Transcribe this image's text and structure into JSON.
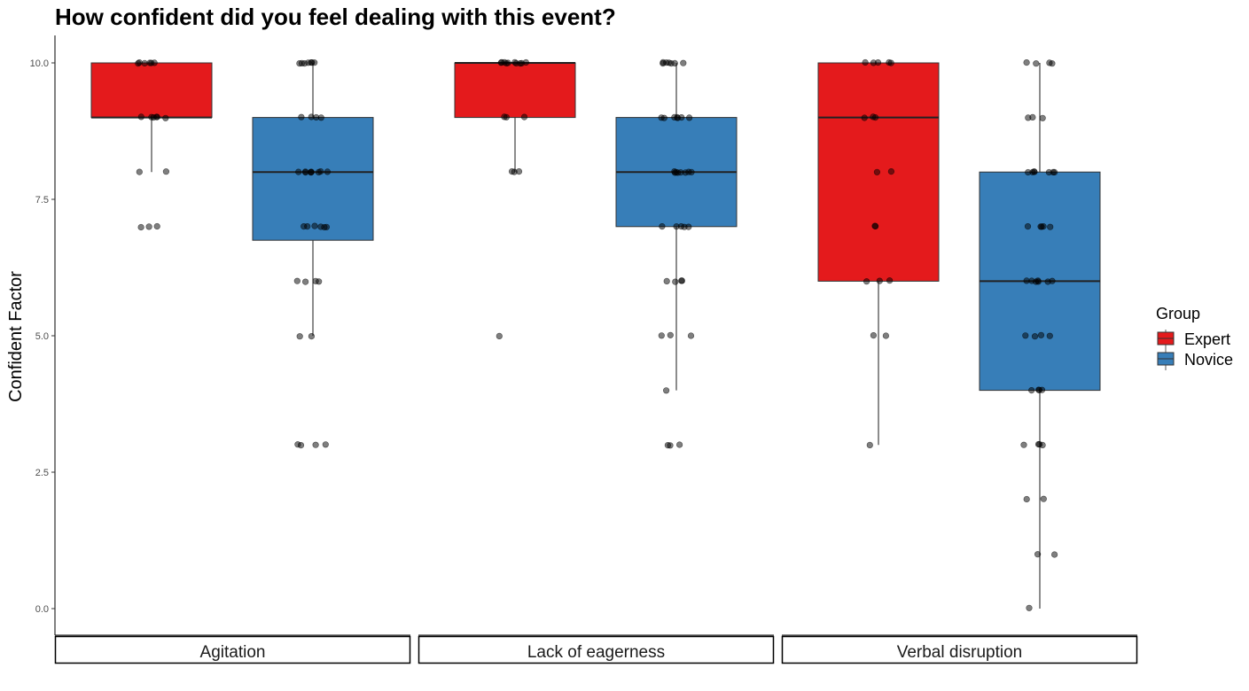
{
  "chart_data": {
    "type": "box",
    "title": "How confident did you feel dealing with this event?",
    "xlabel": "",
    "ylabel": "Confident Factor",
    "ylim": [
      -0.5,
      10.5
    ],
    "yticks": [
      "0.0",
      "2.5",
      "5.0",
      "7.5",
      "10.0"
    ],
    "ytick_values": [
      0,
      2.5,
      5,
      7.5,
      10
    ],
    "grid": false,
    "legend": {
      "title": "Group",
      "position": "right",
      "entries": [
        {
          "name": "Expert",
          "color": "#E41A1C"
        },
        {
          "name": "Novice",
          "color": "#377EB8"
        }
      ]
    },
    "facets": [
      "Agitation",
      "Lack of eagerness",
      "Verbal disruption"
    ],
    "series": [
      {
        "facet": 0,
        "group": 0,
        "name": "Expert",
        "q1": 9,
        "median": 9,
        "q3": 10,
        "whisker_low": 8,
        "whisker_high": 10,
        "points": [
          10,
          10,
          10,
          10,
          10,
          10,
          9,
          9,
          9,
          9,
          9,
          9,
          8,
          8,
          7,
          7,
          7
        ]
      },
      {
        "facet": 0,
        "group": 1,
        "name": "Novice",
        "q1": 6.75,
        "median": 8,
        "q3": 9,
        "whisker_low": 5,
        "whisker_high": 10,
        "points": [
          10,
          10,
          10,
          10,
          10,
          10,
          10,
          9,
          9,
          9,
          9,
          8,
          8,
          8,
          8,
          8,
          8,
          8,
          8,
          8,
          7,
          7,
          7,
          7,
          7,
          7,
          6,
          6,
          6,
          6,
          5,
          5,
          3,
          3,
          3,
          3
        ]
      },
      {
        "facet": 1,
        "group": 0,
        "name": "Expert",
        "q1": 9,
        "median": 10,
        "q3": 10,
        "whisker_low": 8,
        "whisker_high": 10,
        "points": [
          10,
          10,
          10,
          10,
          10,
          10,
          10,
          10,
          10,
          10,
          9,
          9,
          9,
          8,
          8,
          8,
          5
        ]
      },
      {
        "facet": 1,
        "group": 1,
        "name": "Novice",
        "q1": 7,
        "median": 8,
        "q3": 9,
        "whisker_low": 4,
        "whisker_high": 10,
        "points": [
          10,
          10,
          10,
          10,
          10,
          10,
          10,
          9,
          9,
          9,
          9,
          9,
          9,
          9,
          8,
          8,
          8,
          8,
          8,
          8,
          8,
          8,
          7,
          7,
          7,
          7,
          7,
          6,
          6,
          6,
          6,
          5,
          5,
          5,
          4,
          3,
          3,
          3
        ]
      },
      {
        "facet": 2,
        "group": 0,
        "name": "Expert",
        "q1": 6,
        "median": 9,
        "q3": 10,
        "whisker_low": 3,
        "whisker_high": 10,
        "points": [
          10,
          10,
          10,
          10,
          10,
          9,
          9,
          9,
          8,
          8,
          7,
          7,
          6,
          6,
          6,
          5,
          5,
          3
        ]
      },
      {
        "facet": 2,
        "group": 1,
        "name": "Novice",
        "q1": 4,
        "median": 6,
        "q3": 8,
        "whisker_low": 0,
        "whisker_high": 10,
        "points": [
          10,
          10,
          10,
          10,
          9,
          9,
          9,
          8,
          8,
          8,
          8,
          8,
          8,
          8,
          7,
          7,
          7,
          7,
          7,
          6,
          6,
          6,
          6,
          6,
          6,
          6,
          5,
          5,
          5,
          5,
          4,
          4,
          4,
          4,
          3,
          3,
          3,
          3,
          2,
          2,
          1,
          1,
          0
        ]
      }
    ]
  }
}
